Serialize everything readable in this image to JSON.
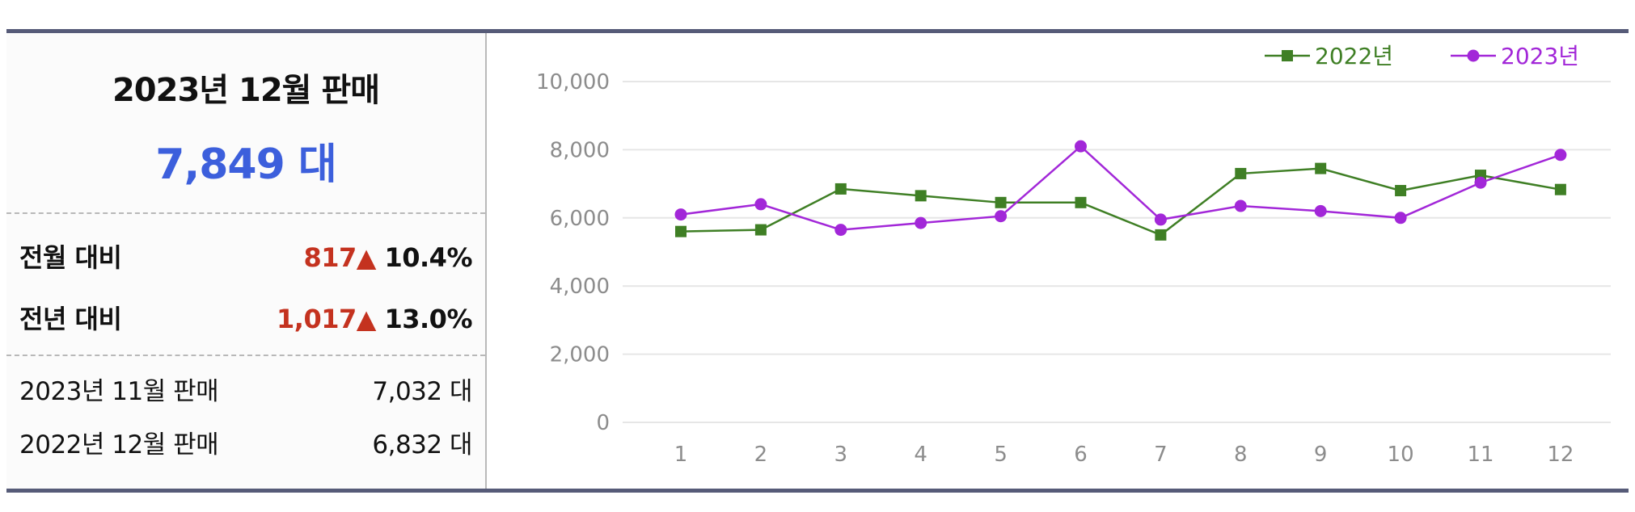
{
  "summary": {
    "title": "2023년 12월 판매",
    "total": "7,849 대",
    "mom": {
      "label": "전월 대비",
      "change": "817",
      "arrow": "▲",
      "pct": "10.4%"
    },
    "yoy": {
      "label": "전년 대비",
      "change": "1,017",
      "arrow": "▲",
      "pct": "13.0%"
    },
    "prev_month": {
      "label": "2023년 11월 판매",
      "value": "7,032 대"
    },
    "prev_year": {
      "label": "2022년 12월 판매",
      "value": "6,832 대"
    }
  },
  "colors": {
    "accent_blue": "#3c5fdc",
    "up_red": "#c4321f",
    "border": "#565b78",
    "series_2022": "#3f7f25",
    "series_2023": "#a227d8"
  },
  "chart_data": {
    "type": "line",
    "categories": [
      "1",
      "2",
      "3",
      "4",
      "5",
      "6",
      "7",
      "8",
      "9",
      "10",
      "11",
      "12"
    ],
    "ylim": [
      0,
      10000
    ],
    "yticks": [
      "0",
      "2,000",
      "4,000",
      "6,000",
      "8,000",
      "10,000"
    ],
    "grid": true,
    "legend_position": "top-right",
    "series": [
      {
        "name": "2022년",
        "marker": "square",
        "color": "#3f7f25",
        "values": [
          5600,
          5650,
          6850,
          6650,
          6450,
          6450,
          5500,
          7300,
          7450,
          6800,
          7250,
          6832
        ]
      },
      {
        "name": "2023년",
        "marker": "circle",
        "color": "#a227d8",
        "values": [
          6100,
          6400,
          5650,
          5850,
          6050,
          8100,
          5950,
          6350,
          6200,
          6000,
          7032,
          7849
        ]
      }
    ]
  }
}
